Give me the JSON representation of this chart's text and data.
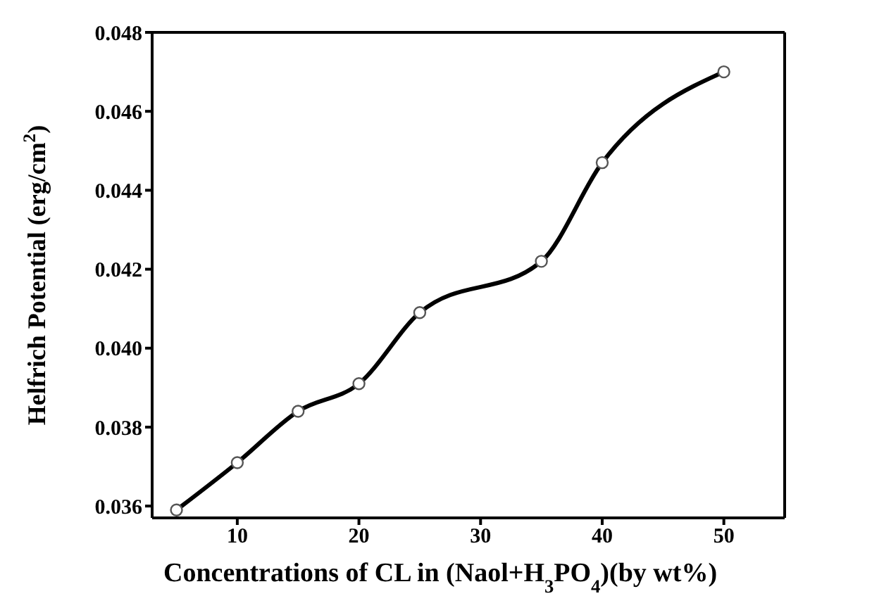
{
  "chart_data": {
    "type": "line",
    "xlabel": "Concentrations of CL in (Naol+H$_{3}$PO$_{4}$)(by wt%)",
    "ylabel": "Helfrich Potential (erg/cm$^{2}$)",
    "x": [
      5,
      10,
      15,
      20,
      25,
      35,
      40,
      50
    ],
    "series": [
      {
        "color": "#000000",
        "values": [
          0.0359,
          0.0371,
          0.0384,
          0.0391,
          0.0409,
          0.0422,
          0.0447,
          0.047
        ]
      }
    ],
    "xlim": [
      3,
      55
    ],
    "xticks": [
      10,
      20,
      30,
      40,
      50
    ],
    "ylim": [
      0.0357,
      0.048
    ],
    "yticks": [
      0.036,
      0.038,
      {
        "value": 0.04,
        "label": "0.040"
      },
      0.042,
      0.044,
      0.046,
      0.048
    ],
    "marker": "circle",
    "line_style": "solid",
    "grid": false,
    "legend": false
  }
}
